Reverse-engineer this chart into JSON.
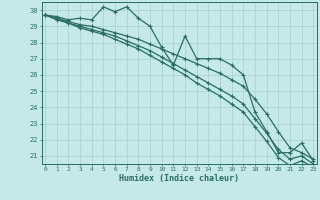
{
  "xlabel": "Humidex (Indice chaleur)",
  "bg_color": "#c5e8e8",
  "grid_color": "#a8d0d0",
  "line_color": "#2a6e65",
  "x": [
    0,
    1,
    2,
    3,
    4,
    5,
    6,
    7,
    8,
    9,
    10,
    11,
    12,
    13,
    14,
    15,
    16,
    17,
    18,
    19,
    20,
    21,
    22,
    23
  ],
  "line_jagged": [
    29.7,
    29.6,
    29.4,
    29.5,
    29.4,
    30.2,
    29.9,
    30.2,
    29.5,
    29.0,
    27.7,
    26.6,
    28.4,
    27.0,
    27.0,
    27.0,
    26.6,
    26.0,
    23.7,
    22.5,
    21.2,
    21.2,
    21.8,
    20.7
  ],
  "line_top": [
    29.7,
    29.5,
    29.3,
    29.1,
    29.0,
    28.8,
    28.6,
    28.4,
    28.2,
    27.9,
    27.6,
    27.3,
    27.0,
    26.7,
    26.4,
    26.1,
    25.7,
    25.3,
    24.5,
    23.6,
    22.5,
    21.5,
    21.2,
    20.8
  ],
  "line_mid": [
    29.7,
    29.5,
    29.2,
    29.0,
    28.8,
    28.6,
    28.4,
    28.1,
    27.8,
    27.5,
    27.1,
    26.7,
    26.3,
    25.9,
    25.5,
    25.1,
    24.7,
    24.2,
    23.3,
    22.4,
    21.4,
    20.8,
    21.0,
    20.5
  ],
  "line_bot": [
    29.7,
    29.4,
    29.2,
    28.9,
    28.7,
    28.5,
    28.2,
    27.9,
    27.6,
    27.2,
    26.8,
    26.4,
    26.0,
    25.5,
    25.1,
    24.7,
    24.2,
    23.7,
    22.8,
    21.9,
    20.9,
    20.4,
    20.7,
    20.3
  ],
  "ylim_min": 20.5,
  "ylim_max": 30.5,
  "yticks": [
    21,
    22,
    23,
    24,
    25,
    26,
    27,
    28,
    29,
    30
  ],
  "xticks": [
    0,
    1,
    2,
    3,
    4,
    5,
    6,
    7,
    8,
    9,
    10,
    11,
    12,
    13,
    14,
    15,
    16,
    17,
    18,
    19,
    20,
    21,
    22,
    23
  ]
}
